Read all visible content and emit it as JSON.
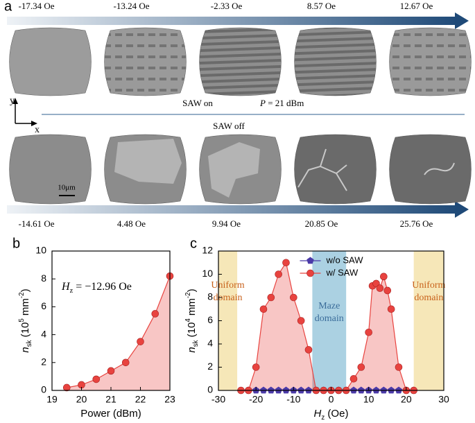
{
  "panel_a": {
    "label": "a",
    "top_fields": [
      "-17.34 Oe",
      "-13.24 Oe",
      "-2.33 Oe",
      "8.57 Oe",
      "12.67 Oe"
    ],
    "bottom_fields": [
      "-14.61 Oe",
      "4.48 Oe",
      "9.94 Oe",
      "20.85 Oe",
      "25.76 Oe"
    ],
    "saw_on": "SAW on",
    "power": [
      "P",
      " = 21 dBm"
    ],
    "saw_off": "SAW off",
    "scale_bar": "10μm",
    "axis_y": "y",
    "axis_x": "x"
  },
  "chart_data": [
    {
      "type": "line",
      "panel_label": "b",
      "annotation": [
        "H",
        "z",
        " = −12.96 Oe"
      ],
      "x_label": [
        "Power (dBm)"
      ],
      "y_label": [
        "n",
        "sk",
        " (10",
        "5",
        " mm",
        "-2",
        ")"
      ],
      "xlim": [
        19,
        23
      ],
      "xticks": [
        19,
        20,
        21,
        22,
        23
      ],
      "ylim": [
        0,
        10
      ],
      "yticks": [
        0,
        2,
        4,
        6,
        8,
        10
      ],
      "series": [
        {
          "name": null,
          "color": "#e8433f",
          "marker": "circle",
          "fill": true,
          "x": [
            19.5,
            20,
            20.5,
            21,
            21.5,
            22,
            22.5,
            23
          ],
          "values": [
            0.2,
            0.4,
            0.8,
            1.4,
            2.0,
            3.5,
            5.5,
            8.2
          ]
        }
      ]
    },
    {
      "type": "line",
      "panel_label": "c",
      "x_label": [
        "H",
        "z",
        " (Oe)"
      ],
      "y_label": [
        "n",
        "sk",
        " (10",
        "4",
        " mm",
        "-2",
        ")"
      ],
      "xlim": [
        -30,
        30
      ],
      "xticks": [
        -30,
        -20,
        -10,
        0,
        10,
        20,
        30
      ],
      "ylim": [
        0,
        12
      ],
      "yticks": [
        0,
        2,
        4,
        6,
        8,
        10,
        12
      ],
      "legend": "top",
      "bands": [
        {
          "x": [
            -30,
            -25
          ],
          "color": "#f3dfa0",
          "label": [
            "Uniform",
            "domain"
          ],
          "label_color": "#c8611a"
        },
        {
          "x": [
            -5,
            4
          ],
          "color": "#8fc2d8",
          "label": [
            "Maze",
            "domain"
          ],
          "label_color": "#3a6c9a"
        },
        {
          "x": [
            22,
            30
          ],
          "color": "#f3dfa0",
          "label": [
            "Uniform",
            "domain"
          ],
          "label_color": "#c8611a"
        }
      ],
      "series": [
        {
          "name": "w/o SAW",
          "color": "#4b3aa8",
          "marker": "pentagon",
          "fill": false,
          "x": [
            -22,
            -20,
            -18,
            -16,
            -14,
            -12,
            -10,
            -8,
            -6,
            -4,
            -2,
            0,
            2,
            4,
            6,
            8,
            10,
            12,
            14,
            16,
            18,
            20,
            22
          ],
          "values": [
            0,
            0,
            0,
            0,
            0,
            0,
            0,
            0,
            0,
            0,
            0,
            0,
            0,
            0,
            0,
            0,
            0,
            0,
            0,
            0,
            0,
            0,
            0
          ]
        },
        {
          "name": "w/ SAW",
          "color": "#e8433f",
          "marker": "circle",
          "fill": true,
          "x": [
            -24,
            -22,
            -20,
            -18,
            -16,
            -14,
            -12,
            -10,
            -8,
            -6,
            -4,
            -2,
            0,
            2,
            4,
            6,
            8,
            10,
            11,
            12,
            13,
            14,
            15,
            16,
            18,
            20,
            22
          ],
          "values": [
            0,
            0,
            2,
            7,
            8,
            10,
            11,
            8,
            6,
            3.5,
            0,
            0,
            0,
            0,
            0,
            1,
            2,
            5,
            9,
            9.2,
            8.8,
            9.8,
            8.6,
            7,
            2,
            0,
            0
          ]
        }
      ]
    }
  ]
}
